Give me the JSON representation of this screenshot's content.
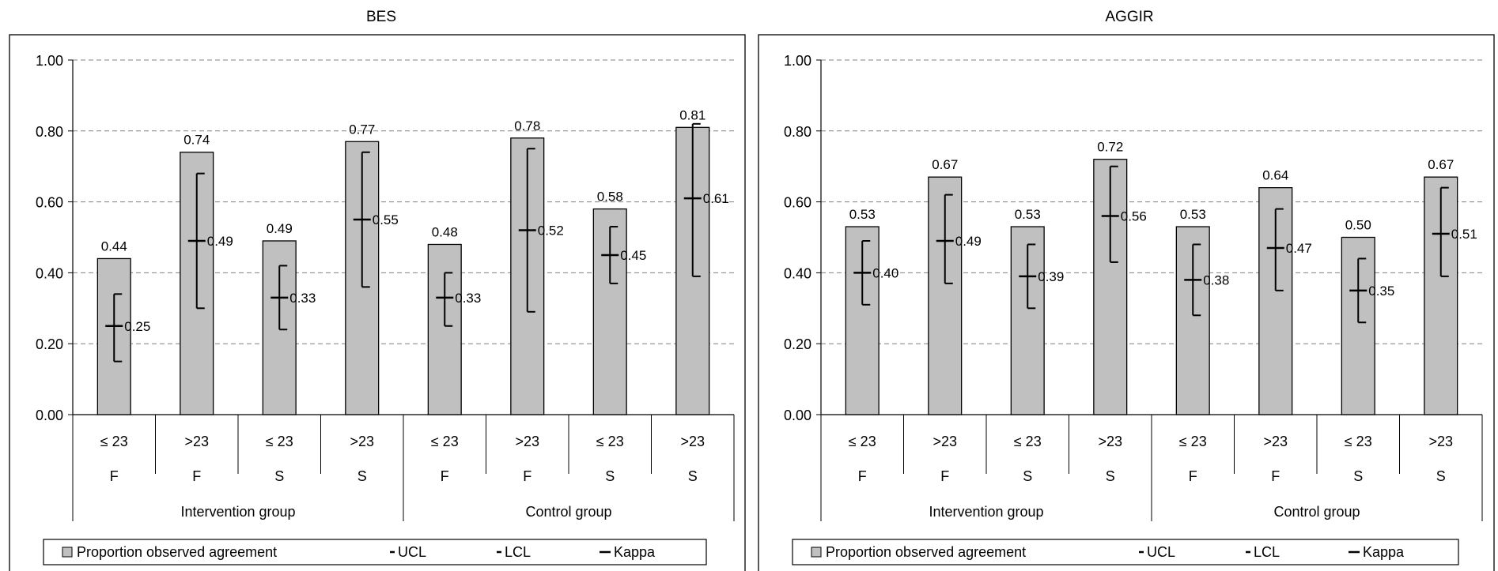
{
  "chart_data": [
    {
      "type": "bar",
      "title": "BES",
      "ylim": [
        0,
        1
      ],
      "yticks": [
        "0.00",
        "0.20",
        "0.40",
        "0.60",
        "0.80",
        "1.00"
      ],
      "grid": "horizontal dashed",
      "categories": [
        "≤  23",
        ">23",
        "≤  23",
        ">23",
        "≤  23",
        ">23",
        "≤  23",
        ">23"
      ],
      "category_level2": [
        "F",
        "F",
        "S",
        "S",
        "F",
        "F",
        "S",
        "S"
      ],
      "groups": [
        {
          "label": "Intervention group",
          "span": 4
        },
        {
          "label": "Control group",
          "span": 4
        }
      ],
      "series": [
        {
          "name": "Proportion observed agreement",
          "values": [
            0.44,
            0.74,
            0.49,
            0.77,
            0.48,
            0.78,
            0.58,
            0.81
          ],
          "labels": [
            "0.44",
            "0.74",
            "0.49",
            "0.77",
            "0.48",
            "0.78",
            "0.58",
            "0.81"
          ]
        },
        {
          "name": "UCL",
          "values": [
            0.34,
            0.68,
            0.42,
            0.74,
            0.4,
            0.75,
            0.53,
            0.82
          ]
        },
        {
          "name": "LCL",
          "values": [
            0.15,
            0.3,
            0.24,
            0.36,
            0.25,
            0.29,
            0.37,
            0.39
          ]
        },
        {
          "name": "Kappa",
          "values": [
            0.25,
            0.49,
            0.33,
            0.55,
            0.33,
            0.52,
            0.45,
            0.61
          ],
          "labels": [
            "0.25",
            "0.49",
            "0.33",
            "0.55",
            "0.33",
            "0.52",
            "0.45",
            "0.61"
          ]
        }
      ],
      "legend": {
        "position": "bottom",
        "items": [
          "Proportion observed agreement",
          "UCL",
          "LCL",
          "Kappa"
        ]
      }
    },
    {
      "type": "bar",
      "title": "AGGIR",
      "ylim": [
        0,
        1
      ],
      "yticks": [
        "0.00",
        "0.20",
        "0.40",
        "0.60",
        "0.80",
        "1.00"
      ],
      "grid": "horizontal dashed",
      "categories": [
        "≤  23",
        ">23",
        "≤  23",
        ">23",
        "≤  23",
        ">23",
        "≤  23",
        ">23"
      ],
      "category_level2": [
        "F",
        "F",
        "S",
        "S",
        "F",
        "F",
        "S",
        "S"
      ],
      "groups": [
        {
          "label": "Intervention group",
          "span": 4
        },
        {
          "label": "Control group",
          "span": 4
        }
      ],
      "series": [
        {
          "name": "Proportion observed agreement",
          "values": [
            0.53,
            0.67,
            0.53,
            0.72,
            0.53,
            0.64,
            0.5,
            0.67
          ],
          "labels": [
            "0.53",
            "0.67",
            "0.53",
            "0.72",
            "0.53",
            "0.64",
            "0.50",
            "0.67"
          ]
        },
        {
          "name": "UCL",
          "values": [
            0.49,
            0.62,
            0.48,
            0.7,
            0.48,
            0.58,
            0.44,
            0.64
          ]
        },
        {
          "name": "LCL",
          "values": [
            0.31,
            0.37,
            0.3,
            0.43,
            0.28,
            0.35,
            0.26,
            0.39
          ]
        },
        {
          "name": "Kappa",
          "values": [
            0.4,
            0.49,
            0.39,
            0.56,
            0.38,
            0.47,
            0.35,
            0.51
          ],
          "labels": [
            "0.40",
            "0.49",
            "0.39",
            "0.56",
            "0.38",
            "0.47",
            "0.35",
            "0.51"
          ]
        }
      ],
      "legend": {
        "position": "bottom",
        "items": [
          "Proportion observed agreement",
          "UCL",
          "LCL",
          "Kappa"
        ]
      }
    }
  ],
  "colors": {
    "bar_fill": "#c0c0c0",
    "bar_stroke": "#000000",
    "grid": "#808080",
    "frame": "#000000"
  }
}
